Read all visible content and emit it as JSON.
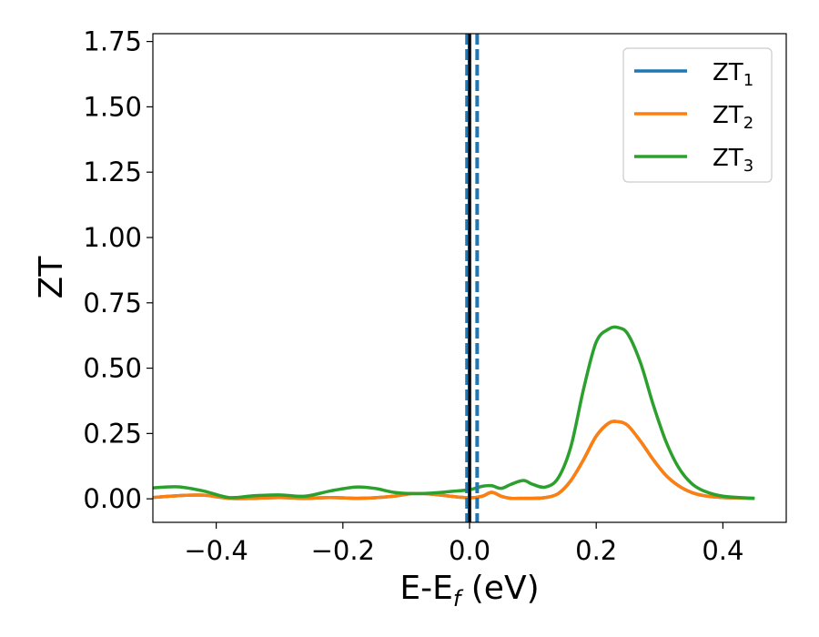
{
  "chart_data": {
    "type": "line",
    "title": "",
    "xlabel": {
      "main": "E-E",
      "sub": "f",
      "unit": " (eV)"
    },
    "ylabel": "ZT",
    "xlim": [
      -0.5,
      0.5
    ],
    "ylim": [
      -0.09,
      1.78
    ],
    "xticks": [
      -0.4,
      -0.2,
      0.0,
      0.2,
      0.4
    ],
    "xtick_labels": [
      "−0.4",
      "−0.2",
      "0.0",
      "0.2",
      "0.4"
    ],
    "yticks": [
      0.0,
      0.25,
      0.5,
      0.75,
      1.0,
      1.25,
      1.5,
      1.75
    ],
    "ytick_labels": [
      "0.00",
      "0.25",
      "0.50",
      "0.75",
      "1.00",
      "1.25",
      "1.50",
      "1.75"
    ],
    "grid": false,
    "legend": {
      "placement": "top-right"
    },
    "vlines": [
      {
        "x": 0.0,
        "style": "solid",
        "color": "#1f77b4"
      },
      {
        "x": -0.004,
        "style": "dashed",
        "color": "#1f77b4"
      },
      {
        "x": 0.012,
        "style": "dashed",
        "color": "#1f77b4"
      },
      {
        "x": 0.0,
        "style": "solid",
        "color": "#000000"
      }
    ],
    "x": [
      -0.5,
      -0.46,
      -0.42,
      -0.38,
      -0.34,
      -0.3,
      -0.26,
      -0.22,
      -0.18,
      -0.15,
      -0.12,
      -0.09,
      -0.06,
      -0.03,
      0.0,
      0.02,
      0.035,
      0.05,
      0.065,
      0.085,
      0.1,
      0.12,
      0.14,
      0.16,
      0.18,
      0.2,
      0.22,
      0.235,
      0.25,
      0.27,
      0.29,
      0.31,
      0.33,
      0.35,
      0.37,
      0.4,
      0.45
    ],
    "series": [
      {
        "name": "ZT",
        "sub": "1",
        "color": "#1f77b4",
        "values": [
          0.005,
          0.012,
          0.014,
          0.002,
          0.002,
          0.005,
          0.002,
          0.005,
          0.002,
          0.004,
          0.01,
          0.02,
          0.018,
          0.01,
          0.004,
          0.01,
          0.025,
          0.01,
          0.002,
          0.002,
          0.002,
          0.005,
          0.02,
          0.07,
          0.15,
          0.24,
          0.29,
          0.295,
          0.28,
          0.22,
          0.15,
          0.09,
          0.05,
          0.025,
          0.012,
          0.005,
          0.002
        ]
      },
      {
        "name": "ZT",
        "sub": "2",
        "color": "#ff7f0e",
        "values": [
          0.005,
          0.012,
          0.014,
          0.002,
          0.002,
          0.005,
          0.002,
          0.005,
          0.002,
          0.004,
          0.01,
          0.02,
          0.018,
          0.01,
          0.004,
          0.01,
          0.025,
          0.01,
          0.002,
          0.002,
          0.002,
          0.005,
          0.02,
          0.07,
          0.15,
          0.24,
          0.29,
          0.295,
          0.28,
          0.22,
          0.15,
          0.09,
          0.05,
          0.025,
          0.012,
          0.005,
          0.002
        ]
      },
      {
        "name": "ZT",
        "sub": "3",
        "color": "#2ca02c",
        "values": [
          0.042,
          0.046,
          0.03,
          0.005,
          0.012,
          0.015,
          0.01,
          0.03,
          0.045,
          0.04,
          0.025,
          0.02,
          0.022,
          0.028,
          0.035,
          0.048,
          0.05,
          0.04,
          0.055,
          0.07,
          0.055,
          0.045,
          0.08,
          0.2,
          0.42,
          0.6,
          0.65,
          0.655,
          0.63,
          0.52,
          0.36,
          0.22,
          0.12,
          0.06,
          0.03,
          0.01,
          0.002
        ]
      }
    ]
  }
}
